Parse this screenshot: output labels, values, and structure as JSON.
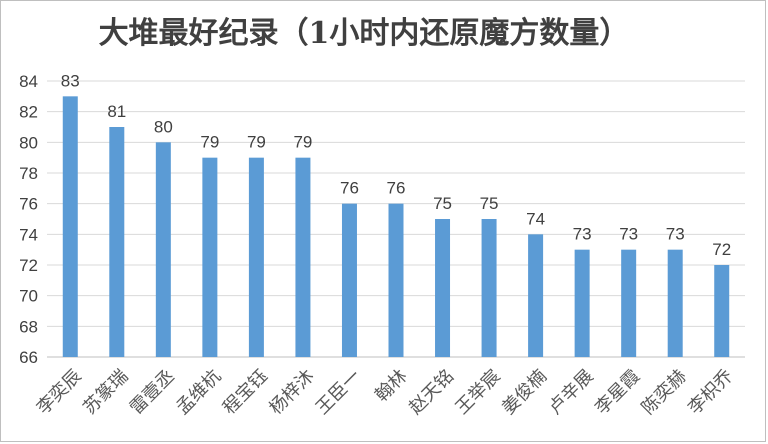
{
  "chart_data": {
    "type": "bar",
    "title": "大堆最好纪录（1小时内还原魔方数量）",
    "categories": [
      "李奕辰",
      "苏篆瑞",
      "雷壹丞",
      "孟维杭",
      "程宝钰",
      "杨梓沐",
      "王臣一",
      "翰林",
      "赵天铭",
      "王举宸",
      "姜俊楠",
      "卢辛展",
      "李星霞",
      "陈奕赫",
      "李枳乔"
    ],
    "values": [
      83,
      81,
      80,
      79,
      79,
      79,
      76,
      76,
      75,
      75,
      74,
      73,
      73,
      73,
      72
    ],
    "ylim": [
      66,
      84
    ],
    "yticks": [
      66,
      68,
      70,
      72,
      74,
      76,
      78,
      80,
      82,
      84
    ],
    "grid": true,
    "colors": {
      "bar": "#5b9bd5",
      "grid": "#d9d9d9",
      "text": "#404040"
    }
  }
}
